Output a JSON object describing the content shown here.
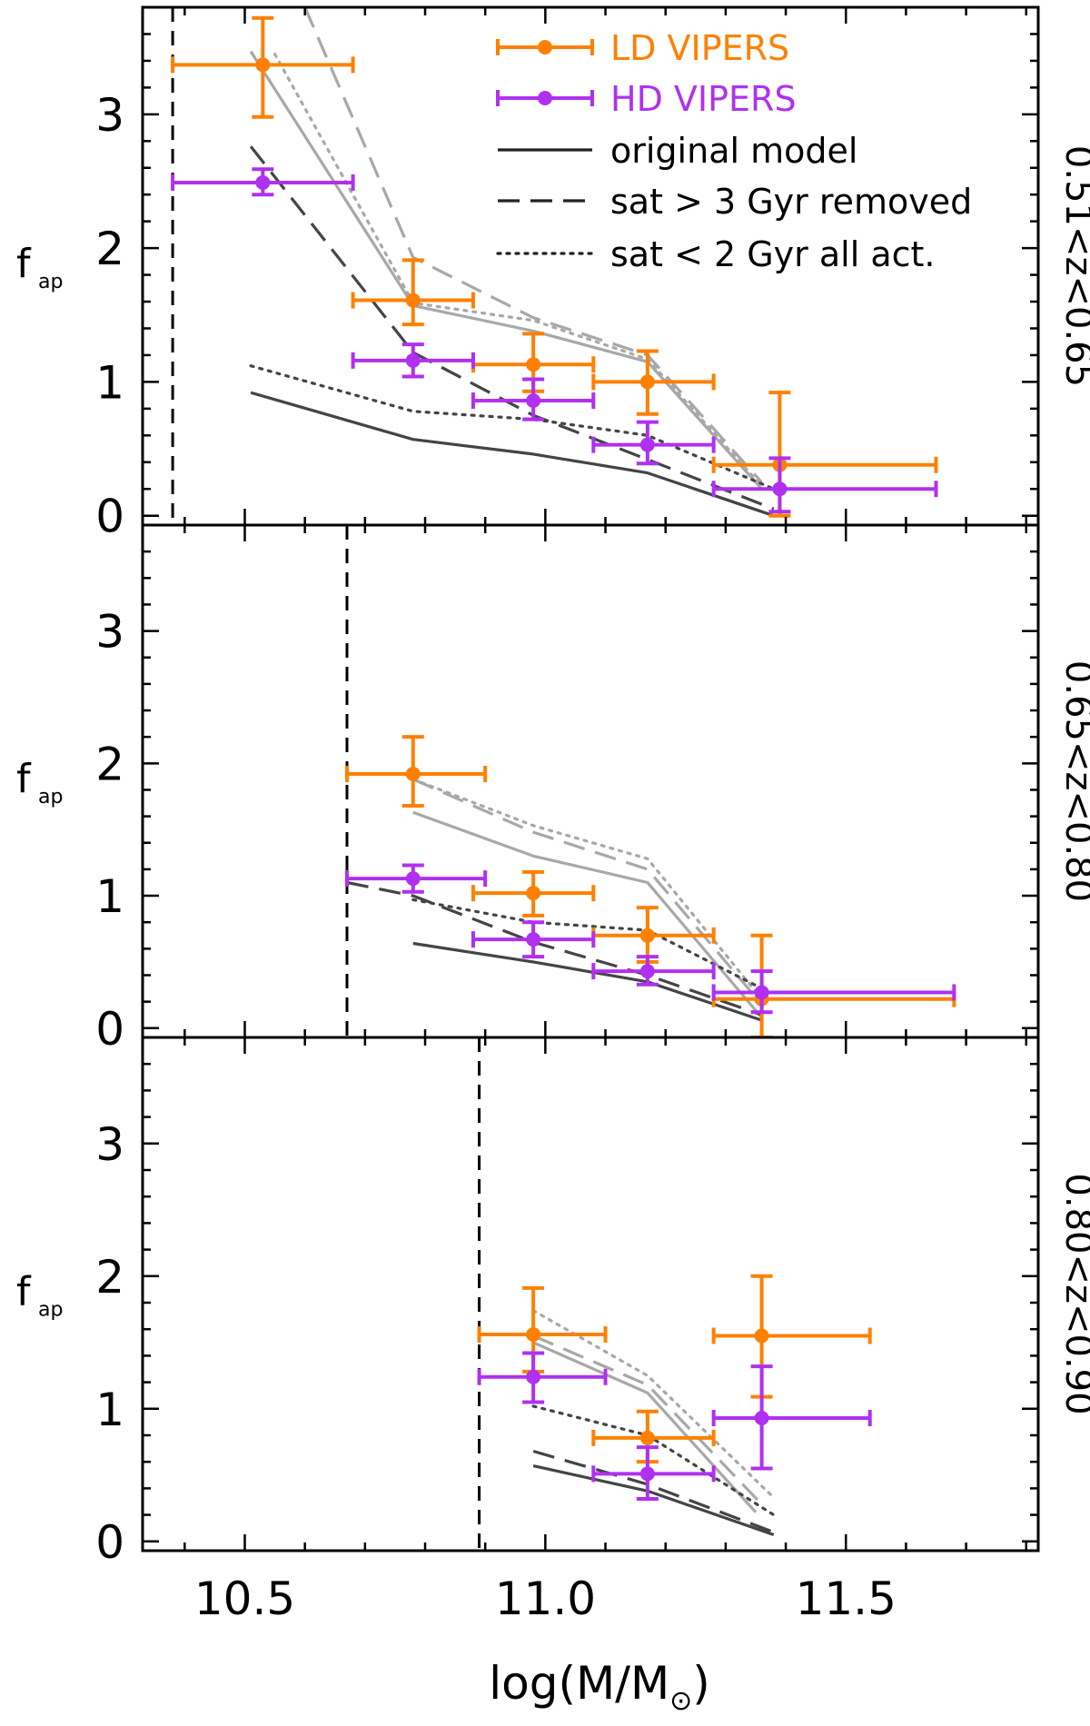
{
  "chart_data": {
    "type": "scatter",
    "xlabel": "log(M/M",
    "xlabel_close": ")",
    "ylabel": "f",
    "ylabel_sub": "ap",
    "xlim": [
      10.33,
      11.82
    ],
    "ylim": [
      -0.07,
      3.8
    ],
    "xticks": [
      10.5,
      11.0,
      11.5
    ],
    "xticklabels": [
      "10.5",
      "11.0",
      "11.5"
    ],
    "yticks": [
      0,
      1,
      2,
      3
    ],
    "yticklabels": [
      "0",
      "1",
      "2",
      "3"
    ],
    "grid": false,
    "legend": {
      "position": "top-right",
      "entries": [
        {
          "label": "LD VIPERS",
          "color": "#ff8000",
          "kind": "errorbar"
        },
        {
          "label": "HD VIPERS",
          "color": "#b030f0",
          "kind": "errorbar"
        },
        {
          "label": "original model",
          "color": "#222222",
          "kind": "solid"
        },
        {
          "label": "sat > 3 Gyr removed",
          "color": "#222222",
          "kind": "dashed"
        },
        {
          "label": "sat < 2 Gyr all act.",
          "color": "#222222",
          "kind": "dotted"
        }
      ]
    },
    "panels": [
      {
        "label": "0.51<z<0.65",
        "mass_limit": 10.38,
        "ld": [
          {
            "x": 10.53,
            "y": 3.37,
            "xlo": 10.38,
            "xhi": 10.68,
            "ylo": 2.98,
            "yhi": 3.72
          },
          {
            "x": 10.78,
            "y": 1.61,
            "xlo": 10.68,
            "xhi": 10.88,
            "ylo": 1.43,
            "yhi": 1.91
          },
          {
            "x": 10.98,
            "y": 1.13,
            "xlo": 10.88,
            "xhi": 11.08,
            "ylo": 0.93,
            "yhi": 1.36
          },
          {
            "x": 11.17,
            "y": 1.0,
            "xlo": 11.08,
            "xhi": 11.28,
            "ylo": 0.76,
            "yhi": 1.23
          },
          {
            "x": 11.39,
            "y": 0.38,
            "xlo": 11.28,
            "xhi": 11.65,
            "ylo": 0.0,
            "yhi": 0.92
          }
        ],
        "hd": [
          {
            "x": 10.53,
            "y": 2.49,
            "xlo": 10.38,
            "xhi": 10.68,
            "ylo": 2.4,
            "yhi": 2.59
          },
          {
            "x": 10.78,
            "y": 1.16,
            "xlo": 10.68,
            "xhi": 10.88,
            "ylo": 1.04,
            "yhi": 1.28
          },
          {
            "x": 10.98,
            "y": 0.86,
            "xlo": 10.88,
            "xhi": 11.08,
            "ylo": 0.72,
            "yhi": 1.02
          },
          {
            "x": 11.17,
            "y": 0.53,
            "xlo": 11.08,
            "xhi": 11.28,
            "ylo": 0.39,
            "yhi": 0.7
          },
          {
            "x": 11.39,
            "y": 0.2,
            "xlo": 11.28,
            "xhi": 11.65,
            "ylo": 0.03,
            "yhi": 0.43
          }
        ],
        "models_dark": {
          "solid": {
            "x": [
              10.51,
              10.78,
              10.98,
              11.17,
              11.38
            ],
            "y": [
              0.92,
              0.57,
              0.46,
              0.32,
              0.0
            ]
          },
          "dashed": {
            "x": [
              10.51,
              10.78,
              10.98,
              11.17,
              11.38
            ],
            "y": [
              2.76,
              1.22,
              0.75,
              0.42,
              0.05
            ]
          },
          "dotted": {
            "x": [
              10.51,
              10.78,
              10.98,
              11.17,
              11.38
            ],
            "y": [
              1.12,
              0.78,
              0.72,
              0.6,
              0.2
            ]
          }
        },
        "models_light": {
          "solid": {
            "x": [
              10.51,
              10.78,
              10.98,
              11.17,
              11.36
            ],
            "y": [
              3.47,
              1.57,
              1.38,
              1.15,
              0.2
            ]
          },
          "dashed": {
            "x": [
              10.6,
              10.78,
              10.98,
              11.17,
              11.36
            ],
            "y": [
              3.8,
              1.93,
              1.48,
              1.2,
              0.25
            ]
          },
          "dotted": {
            "x": [
              10.55,
              10.78,
              10.98,
              11.17,
              11.36
            ],
            "y": [
              3.45,
              1.59,
              1.46,
              1.17,
              0.22
            ]
          }
        }
      },
      {
        "label": "0.65<z<0.80",
        "mass_limit": 10.67,
        "ld": [
          {
            "x": 10.78,
            "y": 1.92,
            "xlo": 10.67,
            "xhi": 10.9,
            "ylo": 1.68,
            "yhi": 2.2
          },
          {
            "x": 10.98,
            "y": 1.02,
            "xlo": 10.88,
            "xhi": 11.08,
            "ylo": 0.85,
            "yhi": 1.18
          },
          {
            "x": 11.17,
            "y": 0.7,
            "xlo": 11.08,
            "xhi": 11.28,
            "ylo": 0.5,
            "yhi": 0.91
          },
          {
            "x": 11.36,
            "y": 0.22,
            "xlo": 11.28,
            "xhi": 11.68,
            "ylo": -0.07,
            "yhi": 0.7
          }
        ],
        "hd": [
          {
            "x": 10.78,
            "y": 1.13,
            "xlo": 10.67,
            "xhi": 10.9,
            "ylo": 1.03,
            "yhi": 1.23
          },
          {
            "x": 10.98,
            "y": 0.67,
            "xlo": 10.88,
            "xhi": 11.08,
            "ylo": 0.54,
            "yhi": 0.8
          },
          {
            "x": 11.17,
            "y": 0.43,
            "xlo": 11.08,
            "xhi": 11.28,
            "ylo": 0.33,
            "yhi": 0.54
          },
          {
            "x": 11.36,
            "y": 0.27,
            "xlo": 11.28,
            "xhi": 11.68,
            "ylo": 0.12,
            "yhi": 0.43
          }
        ],
        "models_dark": {
          "solid": {
            "x": [
              10.78,
              10.98,
              11.17,
              11.36
            ],
            "y": [
              0.64,
              0.5,
              0.35,
              0.06
            ]
          },
          "dashed": {
            "x": [
              10.67,
              10.78,
              10.98,
              11.17,
              11.36
            ],
            "y": [
              1.1,
              1.0,
              0.65,
              0.4,
              0.1
            ]
          },
          "dotted": {
            "x": [
              10.78,
              10.98,
              11.17,
              11.36
            ],
            "y": [
              0.97,
              0.8,
              0.74,
              0.3
            ]
          }
        },
        "models_light": {
          "solid": {
            "x": [
              10.78,
              10.98,
              11.17,
              11.36
            ],
            "y": [
              1.63,
              1.3,
              1.1,
              0.08
            ]
          },
          "dashed": {
            "x": [
              10.78,
              10.98,
              11.17,
              11.36
            ],
            "y": [
              1.88,
              1.48,
              1.2,
              0.18
            ]
          },
          "dotted": {
            "x": [
              10.78,
              10.98,
              11.17,
              11.36
            ],
            "y": [
              1.88,
              1.53,
              1.28,
              0.22
            ]
          }
        }
      },
      {
        "label": "0.80<z<0.90",
        "mass_limit": 10.89,
        "ld": [
          {
            "x": 10.98,
            "y": 1.56,
            "xlo": 10.89,
            "xhi": 11.1,
            "ylo": 1.28,
            "yhi": 1.91
          },
          {
            "x": 11.17,
            "y": 0.78,
            "xlo": 11.08,
            "xhi": 11.28,
            "ylo": 0.6,
            "yhi": 0.98
          },
          {
            "x": 11.36,
            "y": 1.55,
            "xlo": 11.28,
            "xhi": 11.54,
            "ylo": 1.09,
            "yhi": 2.0
          }
        ],
        "hd": [
          {
            "x": 10.98,
            "y": 1.24,
            "xlo": 10.89,
            "xhi": 11.1,
            "ylo": 1.05,
            "yhi": 1.42
          },
          {
            "x": 11.17,
            "y": 0.51,
            "xlo": 11.08,
            "xhi": 11.28,
            "ylo": 0.32,
            "yhi": 0.71
          },
          {
            "x": 11.36,
            "y": 0.93,
            "xlo": 11.28,
            "xhi": 11.54,
            "ylo": 0.55,
            "yhi": 1.32
          }
        ],
        "models_dark": {
          "solid": {
            "x": [
              10.98,
              11.17,
              11.38
            ],
            "y": [
              0.57,
              0.38,
              0.05
            ]
          },
          "dashed": {
            "x": [
              10.98,
              11.17,
              11.38
            ],
            "y": [
              0.68,
              0.43,
              0.07
            ]
          },
          "dotted": {
            "x": [
              10.98,
              11.17,
              11.38
            ],
            "y": [
              1.02,
              0.8,
              0.2
            ]
          }
        },
        "models_light": {
          "solid": {
            "x": [
              10.98,
              11.17,
              11.35
            ],
            "y": [
              1.5,
              1.12,
              0.22
            ]
          },
          "dashed": {
            "x": [
              10.98,
              11.17,
              11.36
            ],
            "y": [
              1.55,
              1.18,
              0.28
            ]
          },
          "dotted": {
            "x": [
              10.98,
              11.17,
              11.38
            ],
            "y": [
              1.74,
              1.25,
              0.33
            ]
          }
        }
      }
    ],
    "colors": {
      "ld": "#ff8000",
      "hd": "#b030f0",
      "model_dark": "#444444",
      "model_light": "#a8a8a8",
      "axes": "#000000"
    }
  }
}
